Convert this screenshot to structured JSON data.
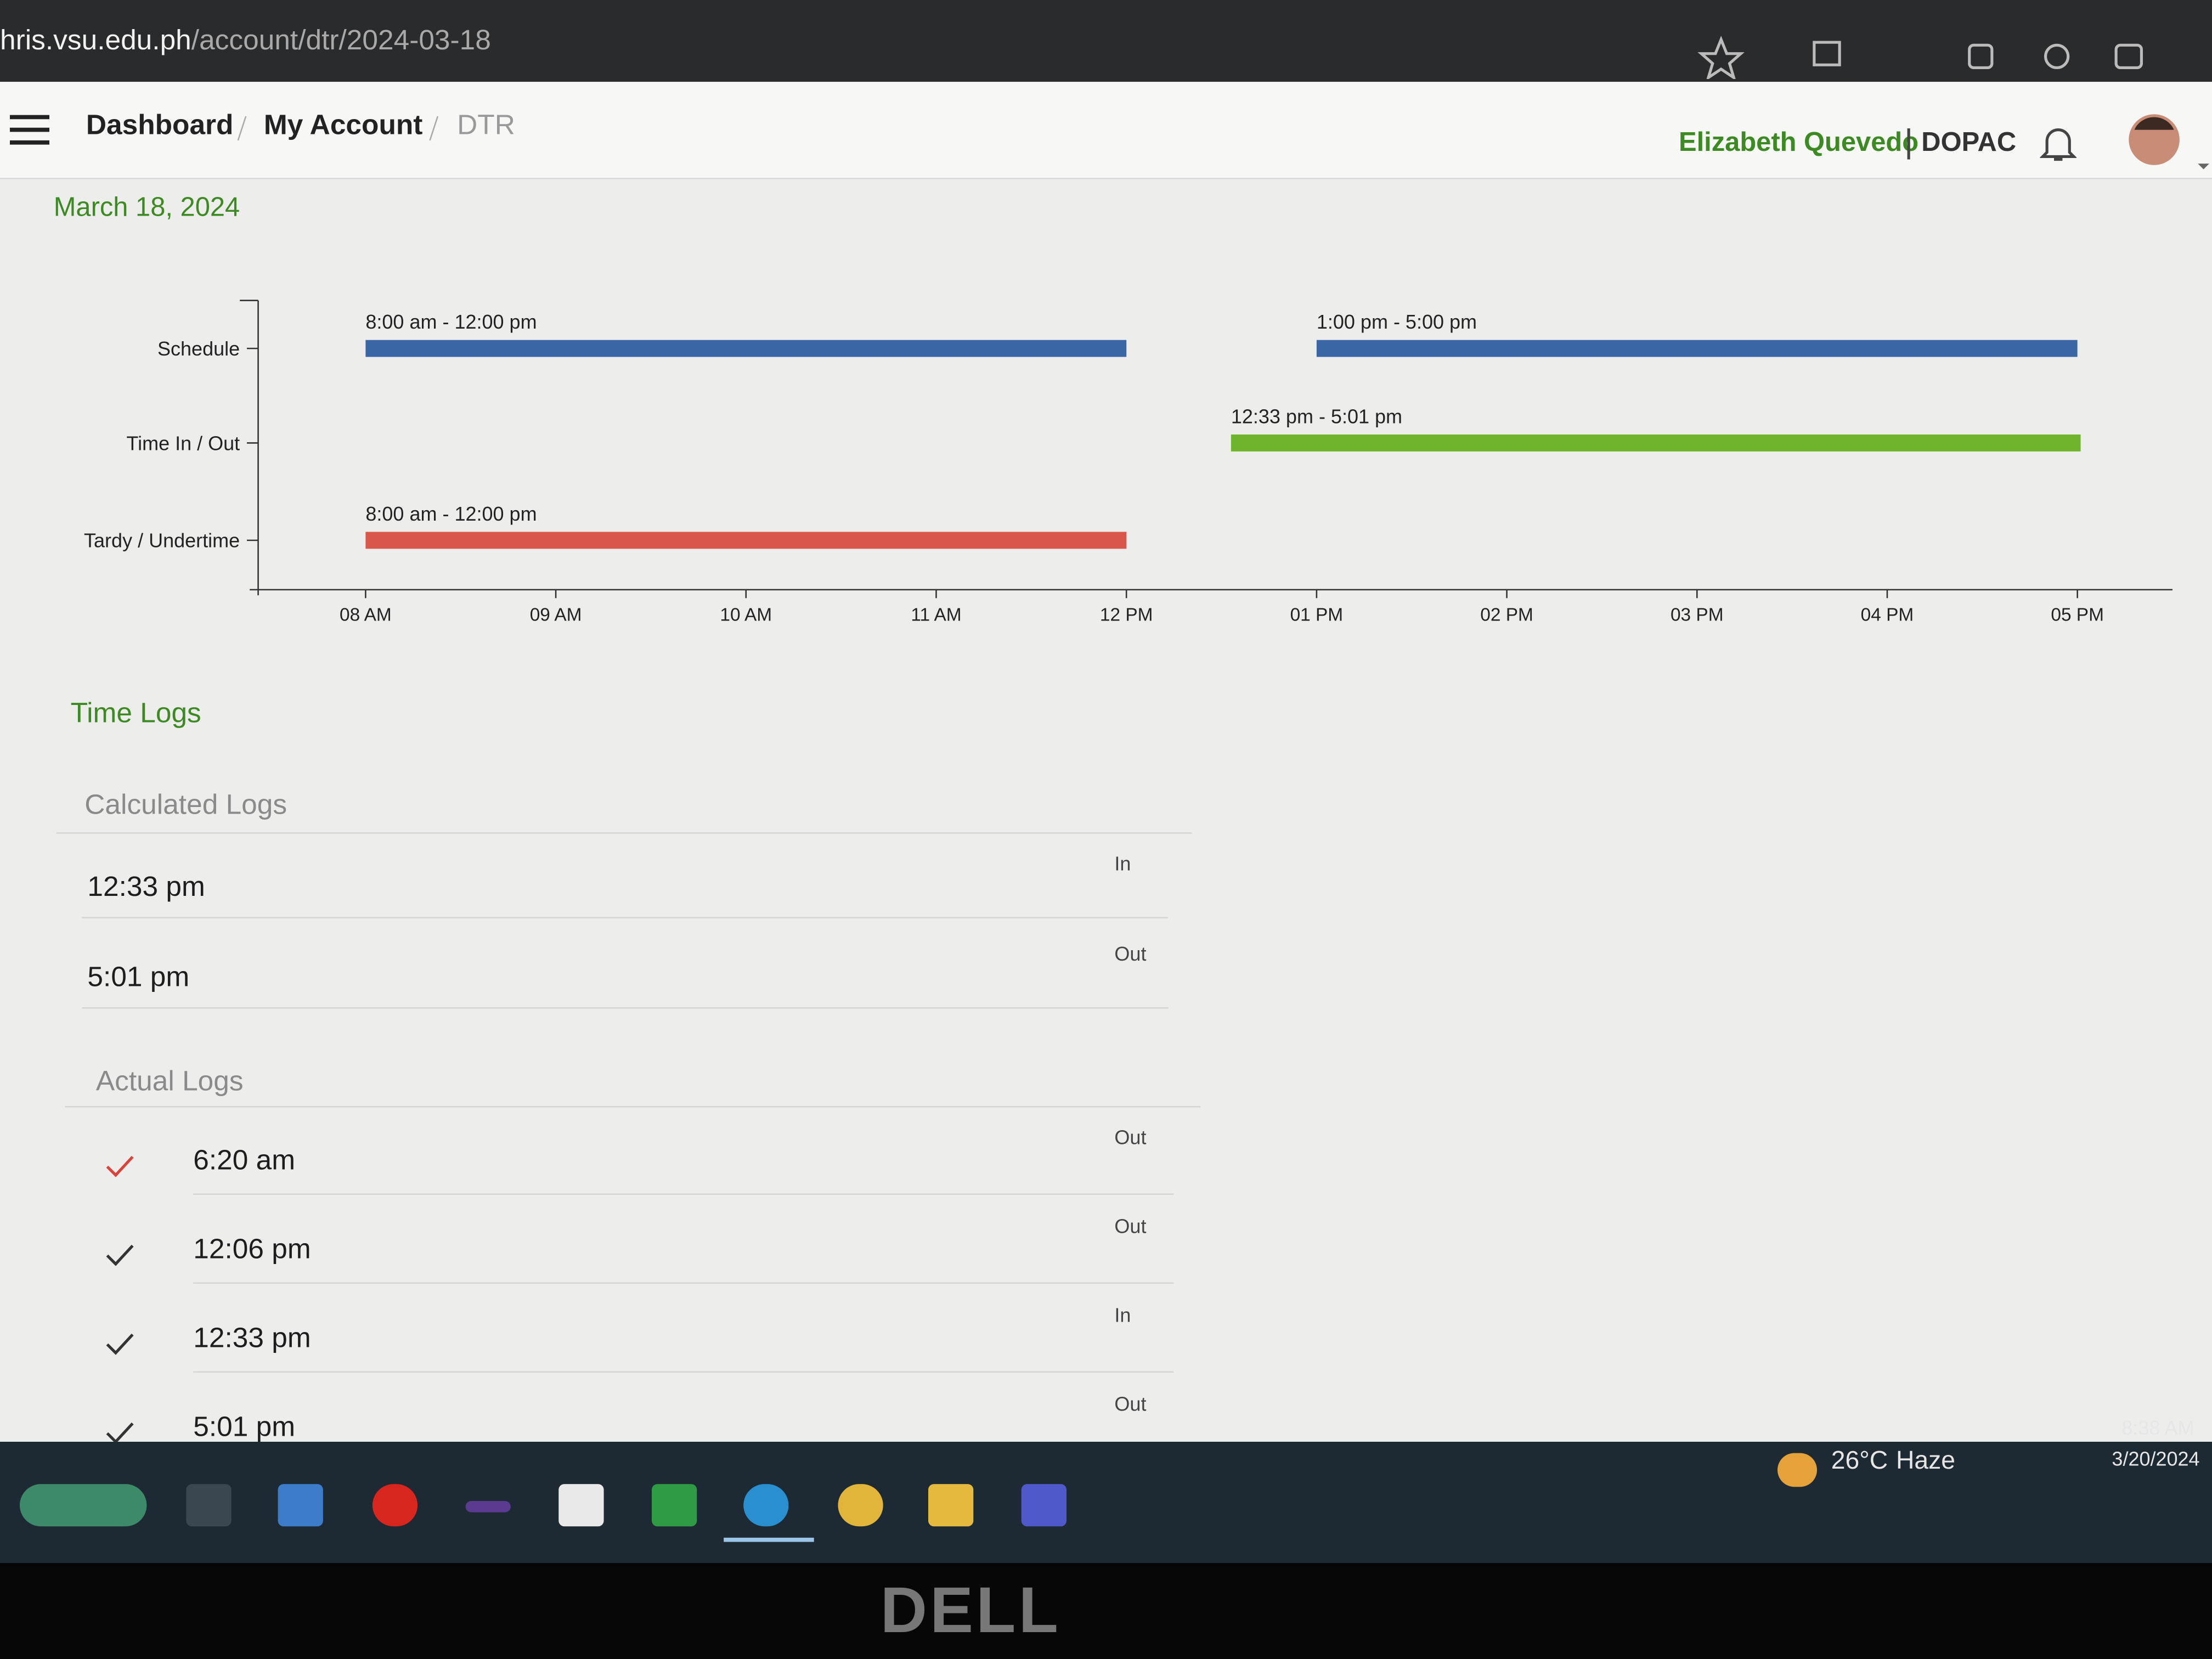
{
  "browser": {
    "url_host": "hris.vsu.edu.ph",
    "url_path": "/account/dtr/2024-03-18"
  },
  "header": {
    "breadcrumbs": [
      "Dashboard",
      "My Account",
      "DTR"
    ],
    "user": "Elizabeth Quevedo",
    "office": "DOPAC"
  },
  "date": "March 18, 2024",
  "timeline": {
    "rows": [
      "Schedule",
      "Time In / Out",
      "Tardy / Undertime"
    ],
    "xlim": [
      7.45,
      17.5
    ],
    "xticks": [
      {
        "value": 8,
        "label": "08 AM"
      },
      {
        "value": 9,
        "label": "09 AM"
      },
      {
        "value": 10,
        "label": "10 AM"
      },
      {
        "value": 11,
        "label": "11 AM"
      },
      {
        "value": 12,
        "label": "12 PM"
      },
      {
        "value": 13,
        "label": "01 PM"
      },
      {
        "value": 14,
        "label": "02 PM"
      },
      {
        "value": 15,
        "label": "03 PM"
      },
      {
        "value": 16,
        "label": "04 PM"
      },
      {
        "value": 17,
        "label": "05 PM"
      }
    ],
    "bars": [
      {
        "row": 0,
        "start": 8,
        "end": 12,
        "label": "8:00 am - 12:00 pm",
        "color": "#3a66a6"
      },
      {
        "row": 0,
        "start": 13,
        "end": 17,
        "label": "1:00 pm - 5:00 pm",
        "color": "#3a66a6"
      },
      {
        "row": 1,
        "start": 12.55,
        "end": 17.017,
        "label": "12:33 pm - 5:01 pm",
        "color": "#6fb52c"
      },
      {
        "row": 2,
        "start": 8,
        "end": 12,
        "label": "8:00 am - 12:00 pm",
        "color": "#d9564a"
      }
    ]
  },
  "time_logs": {
    "title": "Time Logs",
    "calculated": {
      "title": "Calculated Logs",
      "rows": [
        {
          "time": "12:33 pm",
          "type": "In"
        },
        {
          "time": "5:01 pm",
          "type": "Out"
        }
      ]
    },
    "actual": {
      "title": "Actual Logs",
      "rows": [
        {
          "time": "6:20 am",
          "type": "Out",
          "check_color": "#d9443a"
        },
        {
          "time": "12:06 pm",
          "type": "Out",
          "check_color": "#333333"
        },
        {
          "time": "12:33 pm",
          "type": "In",
          "check_color": "#333333"
        },
        {
          "time": "5:01 pm",
          "type": "Out",
          "check_color": "#333333"
        }
      ]
    }
  },
  "taskbar": {
    "temperature": "26°C",
    "weather": "Haze",
    "time": "8:38 AM",
    "date": "3/20/2024"
  },
  "bezel": {
    "brand": "DELL"
  }
}
